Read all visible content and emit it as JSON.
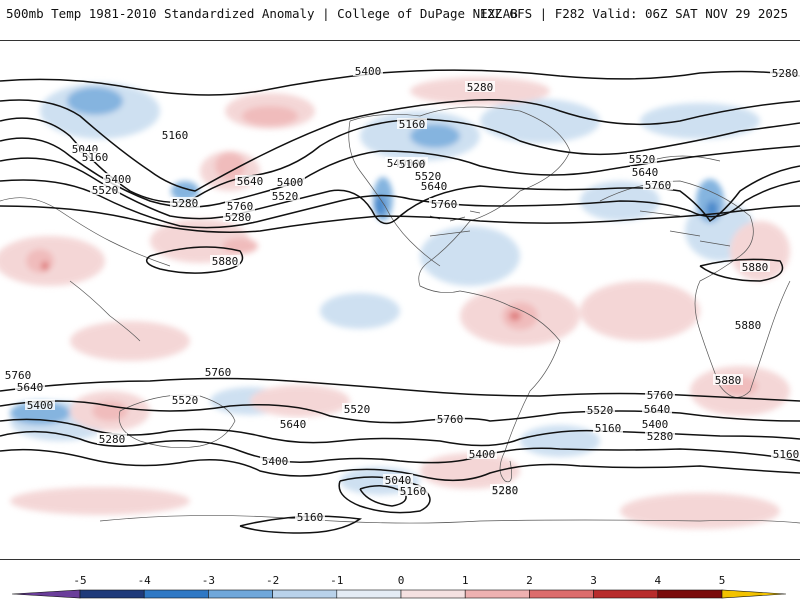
{
  "header": {
    "title": "500mb Temp 1981-2010 Standardized Anomaly | College of DuPage NEXLAB",
    "run_info": "12Z GFS | F282 Valid: 06Z SAT NOV 29 2025"
  },
  "map": {
    "product": "500 mb geopotential height contours with temperature standardized anomaly shading",
    "contour_labels": [
      "5400",
      "5280",
      "5280",
      "5160",
      "5040",
      "5160",
      "5400",
      "5520",
      "5280",
      "5160",
      "5640",
      "5400",
      "5520",
      "5760",
      "5400",
      "5520",
      "5640",
      "5760",
      "5280",
      "5400",
      "5520",
      "5640",
      "5760",
      "5880",
      "5880",
      "5880",
      "5880",
      "5160",
      "5760",
      "5640",
      "5400",
      "5520",
      "5280",
      "5760",
      "5640",
      "5520",
      "5400",
      "5280",
      "5040",
      "5160",
      "5760",
      "5400",
      "5520",
      "5640",
      "5760",
      "5400",
      "5160",
      "5280",
      "5160",
      "5280",
      "5160"
    ]
  },
  "colorbar": {
    "ticks": [
      "-5",
      "-4",
      "-3",
      "-2",
      "-1",
      "0",
      "1",
      "2",
      "3",
      "4",
      "5"
    ],
    "colors": [
      "#6a3d9a",
      "#1f3a7a",
      "#2f78c4",
      "#6fa7da",
      "#b9d2ea",
      "#e4ecf5",
      "#f5e1e1",
      "#eeb1b1",
      "#dc6c6c",
      "#b82c2c",
      "#7a0c0c",
      "#f2c200"
    ]
  },
  "colors": {
    "negative_anomaly": "#6fa7da",
    "positive_anomaly": "#eeb1b1",
    "contour": "#111111",
    "coastline": "#555555"
  }
}
